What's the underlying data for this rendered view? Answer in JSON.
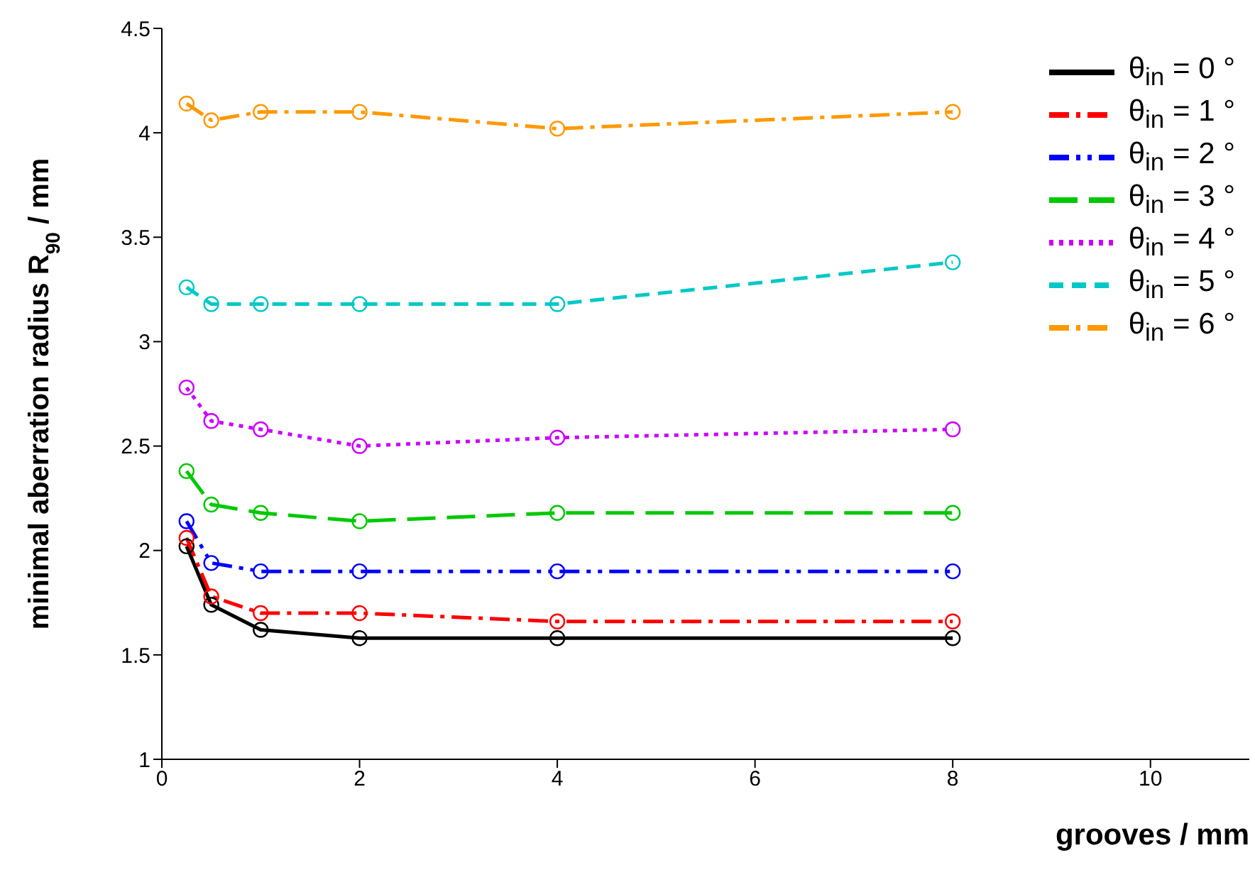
{
  "chart_data": {
    "type": "line",
    "xlabel": "grooves / mm",
    "ylabel": "minimal aberration radius R$_{90}$ / mm",
    "x": [
      0.25,
      0.5,
      1,
      2,
      4,
      8
    ],
    "series": [
      {
        "name": "θ$_{in}$ = 0 °",
        "color": "#000000",
        "line_style": "solid",
        "values": [
          2.02,
          1.74,
          1.62,
          1.58,
          1.58,
          1.58
        ]
      },
      {
        "name": "θ$_{in}$ = 1 °",
        "color": "#ff0000",
        "line_style": "dashed",
        "values": [
          2.06,
          1.78,
          1.7,
          1.7,
          1.66,
          1.66
        ]
      },
      {
        "name": "θ$_{in}$ = 2 °",
        "color": "#0000ff",
        "line_style": "dashed",
        "values": [
          2.14,
          1.94,
          1.9,
          1.9,
          1.9,
          1.9
        ]
      },
      {
        "name": "θ$_{in}$ = 3 °",
        "color": "#00c800",
        "line_style": "dashed",
        "values": [
          2.38,
          2.22,
          2.18,
          2.14,
          2.18,
          2.18
        ]
      },
      {
        "name": "θ$_{in}$ = 4 °",
        "color": "#cc00ff",
        "line_style": "dotted",
        "values": [
          2.78,
          2.62,
          2.58,
          2.5,
          2.54,
          2.58
        ]
      },
      {
        "name": "θ$_{in}$ = 5 °",
        "color": "#00c8c8",
        "line_style": "dashed",
        "values": [
          3.26,
          3.18,
          3.18,
          3.18,
          3.18,
          3.38
        ]
      },
      {
        "name": "θ$_{in}$ = 6 °",
        "color": "#ff9900",
        "line_style": "dashed",
        "values": [
          4.14,
          4.06,
          4.1,
          4.1,
          4.02,
          4.1
        ]
      }
    ],
    "xlim": [
      0,
      11
    ],
    "xticks": [
      0,
      2,
      4,
      6,
      8,
      10
    ],
    "ylim": [
      1,
      4.5
    ],
    "yticks": [
      1,
      1.5,
      2,
      2.5,
      3,
      3.5,
      4,
      4.5
    ],
    "grid": false,
    "legend": "top right",
    "marker": "circle"
  }
}
